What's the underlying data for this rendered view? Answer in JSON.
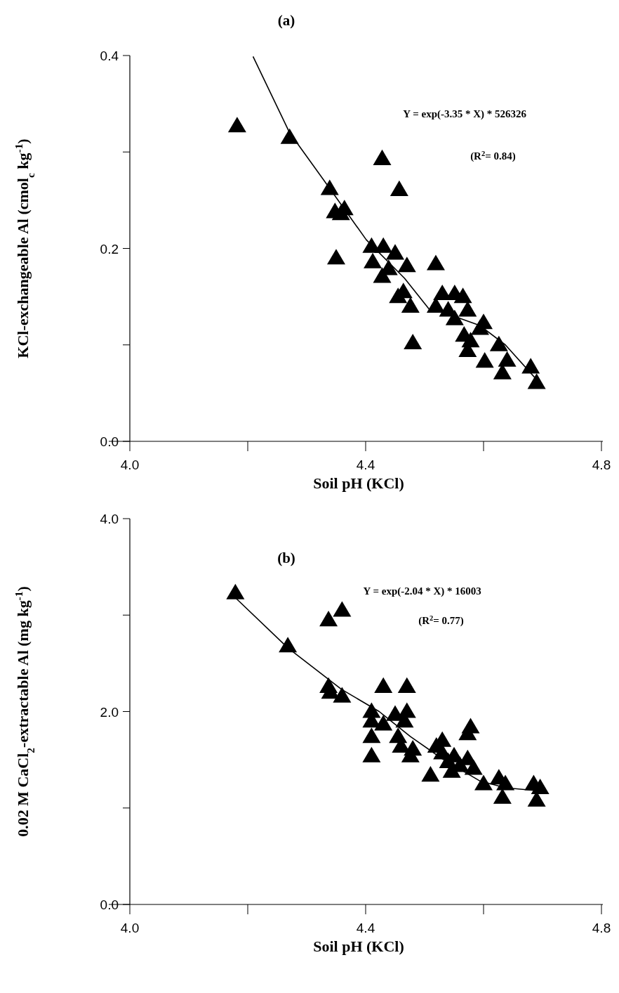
{
  "chart_data": [
    {
      "type": "scatter",
      "title": "(a)",
      "xlabel": "Soil pH (KCl)",
      "ylabel": "KCl-exchangeable Al (cmol$_{c}$ kg$^{-1}$)",
      "annotations": [
        "Y = exp(-3.35 * X) * 526326",
        "(R$^{2}$= 0.84)"
      ],
      "xlim": [
        4.0,
        4.8
      ],
      "ylim": [
        0,
        0.4
      ],
      "xticks": [
        {
          "value": 4.0,
          "label": "4.0"
        },
        {
          "value": 4.2,
          "label": null
        },
        {
          "value": 4.4,
          "label": "4.4"
        },
        {
          "value": 4.6,
          "label": null
        },
        {
          "value": 4.8,
          "label": "4.8"
        }
      ],
      "yticks": [
        {
          "value": 0,
          "label": "0.0"
        },
        {
          "value": 0.1,
          "label": null
        },
        0.2,
        {
          "value": 0.3,
          "label": null
        },
        0.4
      ],
      "series": [
        {
          "type": "scatter",
          "color": "#000000",
          "marker": "triangle",
          "x": [
            4.182,
            4.271,
            4.428,
            4.457,
            4.339,
            4.348,
            4.358,
            4.364,
            4.35,
            4.41,
            4.412,
            4.43,
            4.45,
            4.47,
            4.428,
            4.439,
            4.464,
            4.455,
            4.476,
            4.48,
            4.519,
            4.519,
            4.53,
            4.551,
            4.54,
            4.551,
            4.565,
            4.573,
            4.567,
            4.578,
            4.573,
            4.594,
            4.6,
            4.602,
            4.626,
            4.632,
            4.64,
            4.68,
            4.69
          ],
          "values": [
            0.327,
            0.315,
            0.293,
            0.261,
            0.262,
            0.238,
            0.236,
            0.241,
            0.19,
            0.202,
            0.186,
            0.202,
            0.195,
            0.182,
            0.171,
            0.179,
            0.155,
            0.15,
            0.14,
            0.102,
            0.184,
            0.14,
            0.153,
            0.153,
            0.136,
            0.127,
            0.15,
            0.136,
            0.11,
            0.104,
            0.094,
            0.117,
            0.123,
            0.083,
            0.1,
            0.071,
            0.084,
            0.077,
            0.061
          ]
        },
        {
          "type": "line",
          "color": "#000000",
          "marker": "none",
          "x": [
            4.209,
            4.271,
            4.337,
            4.401,
            4.466,
            4.509,
            4.535,
            4.594,
            4.637,
            4.69
          ],
          "values": [
            0.399,
            0.32,
            0.264,
            0.209,
            0.169,
            0.136,
            0.133,
            0.12,
            0.1,
            0.064
          ]
        }
      ]
    },
    {
      "type": "scatter",
      "title": "(b)",
      "xlabel": "Soil pH (KCl)",
      "ylabel": "0.02 M CaCl$_{2}$-extractable Al (mg kg$^{-1}$)",
      "annotations": [
        "Y = exp(-2.04 * X) * 16003",
        "(R$^{2}$= 0.77)"
      ],
      "xlim": [
        4.0,
        4.8
      ],
      "ylim": [
        0,
        4
      ],
      "xticks": [
        {
          "value": 4.0,
          "label": "4.0"
        },
        {
          "value": 4.2,
          "label": null
        },
        {
          "value": 4.4,
          "label": "4.4"
        },
        {
          "value": 4.6,
          "label": null
        },
        {
          "value": 4.8,
          "label": "4.8"
        }
      ],
      "yticks": [
        {
          "value": 0,
          "label": "0.0"
        },
        {
          "value": 1,
          "label": null
        },
        {
          "value": 2,
          "label": "2.0"
        },
        {
          "value": 3,
          "label": null
        },
        {
          "value": 4,
          "label": "4.0"
        }
      ],
      "series": [
        {
          "type": "scatter",
          "color": "#000000",
          "marker": "triangle",
          "x": [
            4.179,
            4.268,
            4.337,
            4.36,
            4.337,
            4.34,
            4.36,
            4.43,
            4.47,
            4.41,
            4.41,
            4.41,
            4.41,
            4.43,
            4.45,
            4.466,
            4.47,
            4.455,
            4.46,
            4.48,
            4.476,
            4.51,
            4.52,
            4.53,
            4.53,
            4.54,
            4.546,
            4.55,
            4.56,
            4.573,
            4.573,
            4.578,
            4.583,
            4.6,
            4.626,
            4.632,
            4.637,
            4.685,
            4.69,
            4.696
          ],
          "values": [
            3.23,
            2.68,
            2.95,
            3.05,
            2.26,
            2.2,
            2.16,
            2.26,
            2.26,
            2.0,
            1.9,
            1.74,
            1.54,
            1.87,
            1.97,
            1.9,
            2.0,
            1.74,
            1.64,
            1.61,
            1.54,
            1.34,
            1.64,
            1.57,
            1.7,
            1.48,
            1.38,
            1.54,
            1.44,
            1.51,
            1.77,
            1.84,
            1.41,
            1.25,
            1.31,
            1.11,
            1.25,
            1.25,
            1.08,
            1.21
          ]
        },
        {
          "type": "line",
          "color": "#000000",
          "marker": "none",
          "x": [
            4.179,
            4.268,
            4.359,
            4.423,
            4.476,
            4.53,
            4.594,
            4.637,
            4.69
          ],
          "values": [
            3.18,
            2.66,
            2.23,
            2.0,
            1.74,
            1.51,
            1.28,
            1.21,
            1.18
          ]
        }
      ]
    }
  ]
}
